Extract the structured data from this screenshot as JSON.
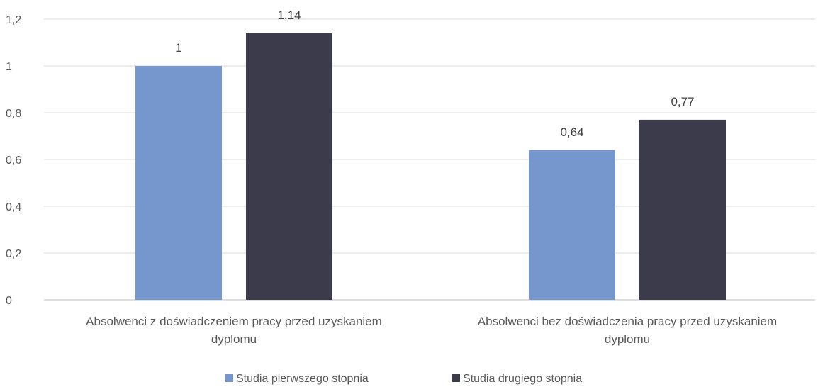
{
  "chart_data": {
    "type": "bar",
    "categories": [
      [
        "Absolwenci z doświadczeniem pracy przed uzyskaniem",
        "dyplomu"
      ],
      [
        "Absolwenci bez doświadczenia pracy przed uzyskaniem",
        "dyplomu"
      ]
    ],
    "series": [
      {
        "name": "Studia pierwszego stopnia",
        "color": "#7597CE",
        "values": [
          1,
          0.64
        ],
        "labels": [
          "1",
          "0,64"
        ]
      },
      {
        "name": "Studia drugiego stopnia",
        "color": "#3C3B4C",
        "values": [
          1.14,
          0.77
        ],
        "labels": [
          "1,14",
          "0,77"
        ]
      }
    ],
    "ylim": [
      0,
      1.2
    ],
    "yticks": [
      {
        "value": 0,
        "label": "0"
      },
      {
        "value": 0.2,
        "label": "0,2"
      },
      {
        "value": 0.4,
        "label": "0,4"
      },
      {
        "value": 0.6,
        "label": "0,6"
      },
      {
        "value": 0.8,
        "label": "0,8"
      },
      {
        "value": 1,
        "label": "1"
      },
      {
        "value": 1.2,
        "label": "1,2"
      }
    ],
    "grid": true,
    "legend_position": "bottom",
    "title": "",
    "xlabel": "",
    "ylabel": ""
  }
}
